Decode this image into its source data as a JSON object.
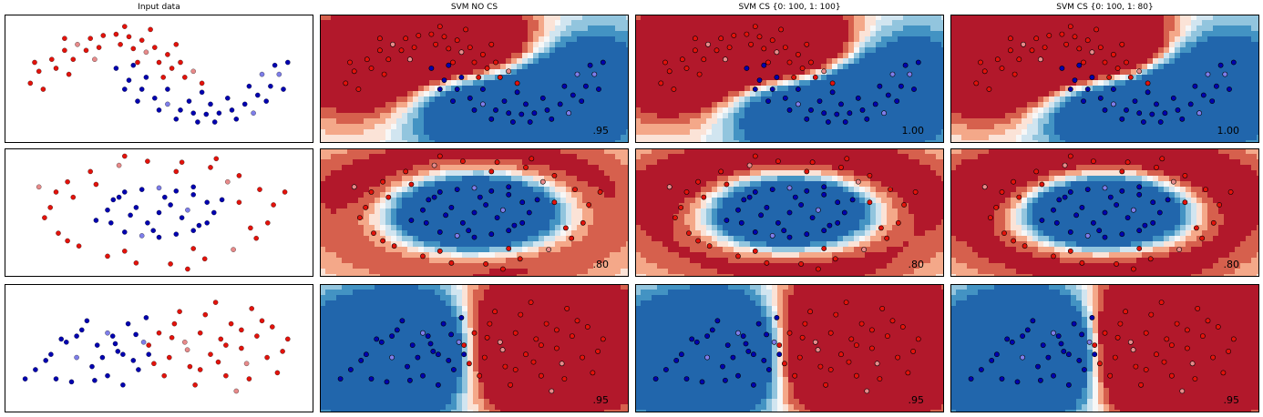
{
  "titles": [
    "Input data",
    "SVM NO CS",
    "SVM CS {0: 100, 1: 100}",
    "SVM CS {0: 100, 1: 80}"
  ],
  "colors": {
    "class0": "#e3120b",
    "class1": "#0000b0",
    "light0": "#e88a8a",
    "light1": "#7e7eea",
    "contour_red": [
      "#fbe3d7",
      "#f4a889",
      "#d6604d",
      "#b2182b"
    ],
    "contour_blue": [
      "#d1e5f0",
      "#92c5de",
      "#4393c3",
      "#2166ac"
    ],
    "neutral": "#f7f7f7"
  },
  "chart_data": [
    {
      "type": "scatter",
      "dataset": "moons",
      "rows_label": "row-1",
      "scores": [
        "",
        ".95",
        "1.00",
        "1.00"
      ],
      "red_points": [
        [
          -1.0,
          0.2
        ],
        [
          -0.9,
          0.4
        ],
        [
          -0.75,
          0.6
        ],
        [
          -0.6,
          0.75
        ],
        [
          -0.45,
          0.85
        ],
        [
          -0.3,
          0.95
        ],
        [
          -0.15,
          1.0
        ],
        [
          0.0,
          1.02
        ],
        [
          0.15,
          0.98
        ],
        [
          0.3,
          0.92
        ],
        [
          0.45,
          0.8
        ],
        [
          0.6,
          0.68
        ],
        [
          0.75,
          0.55
        ],
        [
          0.9,
          0.4
        ],
        [
          1.0,
          0.2
        ],
        [
          -0.85,
          0.1
        ],
        [
          -0.7,
          0.45
        ],
        [
          -0.5,
          0.6
        ],
        [
          -0.35,
          0.75
        ],
        [
          -0.2,
          0.8
        ],
        [
          0.05,
          0.85
        ],
        [
          0.2,
          0.78
        ],
        [
          0.35,
          0.72
        ],
        [
          0.5,
          0.55
        ],
        [
          0.65,
          0.45
        ],
        [
          0.8,
          0.3
        ],
        [
          -0.95,
          0.55
        ],
        [
          -0.6,
          0.95
        ],
        [
          0.1,
          1.15
        ],
        [
          0.4,
          1.1
        ],
        [
          0.7,
          0.85
        ],
        [
          -0.25,
          0.6
        ],
        [
          0.25,
          0.55
        ],
        [
          0.55,
          0.3
        ],
        [
          -0.55,
          0.35
        ]
      ],
      "blue_points": [
        [
          0.0,
          0.45
        ],
        [
          0.15,
          0.25
        ],
        [
          0.3,
          0.1
        ],
        [
          0.45,
          -0.05
        ],
        [
          0.6,
          -0.15
        ],
        [
          0.75,
          -0.25
        ],
        [
          0.9,
          -0.3
        ],
        [
          1.05,
          -0.32
        ],
        [
          1.2,
          -0.3
        ],
        [
          1.35,
          -0.25
        ],
        [
          1.5,
          -0.15
        ],
        [
          1.65,
          0.0
        ],
        [
          1.8,
          0.15
        ],
        [
          1.9,
          0.35
        ],
        [
          2.0,
          0.55
        ],
        [
          0.1,
          0.1
        ],
        [
          0.25,
          -0.1
        ],
        [
          0.5,
          -0.25
        ],
        [
          0.7,
          -0.4
        ],
        [
          0.95,
          -0.45
        ],
        [
          1.15,
          -0.45
        ],
        [
          1.4,
          -0.4
        ],
        [
          1.6,
          -0.3
        ],
        [
          1.75,
          -0.1
        ],
        [
          1.95,
          0.1
        ],
        [
          0.35,
          0.3
        ],
        [
          0.6,
          0.1
        ],
        [
          0.85,
          -0.1
        ],
        [
          1.1,
          -0.15
        ],
        [
          1.3,
          -0.05
        ],
        [
          1.55,
          0.15
        ],
        [
          1.7,
          0.35
        ],
        [
          1.85,
          0.5
        ],
        [
          0.2,
          0.5
        ],
        [
          1.0,
          0.05
        ]
      ],
      "x_range": [
        -1.3,
        2.3
      ],
      "y_range": [
        -0.8,
        1.35
      ]
    },
    {
      "type": "scatter",
      "dataset": "circles",
      "rows_label": "row-2",
      "scores": [
        "",
        ".80",
        ".80",
        ".80"
      ],
      "red_points": [
        [
          -0.95,
          0.1
        ],
        [
          -0.9,
          0.4
        ],
        [
          -0.8,
          0.6
        ],
        [
          -0.6,
          0.8
        ],
        [
          -0.35,
          0.92
        ],
        [
          -0.1,
          1.0
        ],
        [
          0.2,
          0.98
        ],
        [
          0.45,
          0.88
        ],
        [
          0.7,
          0.72
        ],
        [
          0.88,
          0.45
        ],
        [
          1.0,
          0.15
        ],
        [
          0.95,
          -0.2
        ],
        [
          0.85,
          -0.5
        ],
        [
          0.65,
          -0.72
        ],
        [
          0.4,
          -0.9
        ],
        [
          0.1,
          -1.0
        ],
        [
          -0.2,
          -0.98
        ],
        [
          -0.45,
          -0.85
        ],
        [
          -0.7,
          -0.65
        ],
        [
          -0.88,
          -0.4
        ],
        [
          -1.0,
          -0.1
        ],
        [
          -0.75,
          0.3
        ],
        [
          0.6,
          0.6
        ],
        [
          0.8,
          -0.3
        ],
        [
          -0.3,
          -0.75
        ],
        [
          0.3,
          -0.7
        ],
        [
          -0.55,
          0.55
        ],
        [
          0.15,
          0.8
        ],
        [
          -0.8,
          -0.55
        ],
        [
          0.7,
          0.2
        ],
        [
          1.1,
          0.4
        ],
        [
          -1.05,
          0.5
        ],
        [
          0.5,
          1.05
        ],
        [
          -0.3,
          1.1
        ],
        [
          0.25,
          -1.1
        ]
      ],
      "blue_points": [
        [
          -0.45,
          0.05
        ],
        [
          -0.4,
          0.25
        ],
        [
          -0.3,
          0.4
        ],
        [
          -0.15,
          0.45
        ],
        [
          0.0,
          0.48
        ],
        [
          0.15,
          0.42
        ],
        [
          0.3,
          0.35
        ],
        [
          0.42,
          0.2
        ],
        [
          0.48,
          0.0
        ],
        [
          0.42,
          -0.2
        ],
        [
          0.3,
          -0.35
        ],
        [
          0.15,
          -0.42
        ],
        [
          0.0,
          -0.48
        ],
        [
          -0.15,
          -0.45
        ],
        [
          -0.3,
          -0.38
        ],
        [
          -0.42,
          -0.2
        ],
        [
          -0.2,
          0.1
        ],
        [
          0.1,
          0.15
        ],
        [
          0.2,
          -0.1
        ],
        [
          -0.1,
          -0.2
        ],
        [
          0.0,
          0.0
        ],
        [
          -0.25,
          -0.05
        ],
        [
          0.25,
          0.05
        ],
        [
          0.35,
          -0.25
        ],
        [
          -0.35,
          0.3
        ],
        [
          0.05,
          0.3
        ],
        [
          -0.05,
          -0.35
        ],
        [
          0.55,
          0.25
        ],
        [
          -0.55,
          -0.15
        ],
        [
          0.3,
          0.5
        ]
      ],
      "x_range": [
        -1.35,
        1.35
      ],
      "y_range": [
        -1.25,
        1.25
      ]
    },
    {
      "type": "scatter",
      "dataset": "linear",
      "rows_label": "row-3",
      "scores": [
        "",
        ".95",
        ".95",
        ".95"
      ],
      "red_points": [
        [
          1.0,
          0.2
        ],
        [
          1.2,
          0.6
        ],
        [
          1.4,
          -0.2
        ],
        [
          1.5,
          0.9
        ],
        [
          1.7,
          0.3
        ],
        [
          1.8,
          -0.5
        ],
        [
          2.0,
          0.6
        ],
        [
          2.1,
          1.2
        ],
        [
          2.2,
          -0.1
        ],
        [
          2.4,
          0.4
        ],
        [
          2.5,
          -0.8
        ],
        [
          2.6,
          0.9
        ],
        [
          2.8,
          0.1
        ],
        [
          2.9,
          -0.4
        ],
        [
          3.0,
          1.4
        ],
        [
          3.1,
          0.5
        ],
        [
          3.3,
          -0.2
        ],
        [
          3.4,
          0.8
        ],
        [
          3.6,
          0.0
        ],
        [
          1.3,
          -0.8
        ],
        [
          1.9,
          -1.1
        ],
        [
          2.3,
          1.6
        ],
        [
          2.7,
          -1.3
        ],
        [
          3.2,
          1.0
        ],
        [
          1.6,
          1.3
        ],
        [
          2.0,
          -0.6
        ],
        [
          2.5,
          0.2
        ],
        [
          3.5,
          -0.7
        ],
        [
          1.1,
          -0.4
        ],
        [
          2.8,
          0.7
        ],
        [
          3.7,
          0.4
        ],
        [
          1.75,
          0.05
        ],
        [
          2.35,
          -0.35
        ],
        [
          2.95,
          -0.9
        ],
        [
          1.45,
          0.45
        ]
      ],
      "blue_points": [
        [
          -1.2,
          -0.6
        ],
        [
          -1.0,
          -0.3
        ],
        [
          -0.8,
          -0.9
        ],
        [
          -0.6,
          0.3
        ],
        [
          -0.4,
          -0.2
        ],
        [
          -0.3,
          0.7
        ],
        [
          -0.1,
          -0.5
        ],
        [
          0.0,
          0.2
        ],
        [
          0.2,
          -0.8
        ],
        [
          0.3,
          0.5
        ],
        [
          0.5,
          -0.1
        ],
        [
          0.6,
          0.9
        ],
        [
          0.8,
          -0.6
        ],
        [
          0.9,
          0.3
        ],
        [
          -0.5,
          -1.0
        ],
        [
          -0.2,
          1.0
        ],
        [
          0.1,
          -0.2
        ],
        [
          0.4,
          0.0
        ],
        [
          0.7,
          -0.3
        ],
        [
          -0.7,
          0.4
        ],
        [
          1.0,
          -0.1
        ],
        [
          -0.9,
          -0.1
        ],
        [
          0.2,
          0.6
        ],
        [
          0.5,
          -1.1
        ],
        [
          -0.4,
          0.5
        ],
        [
          0.75,
          0.55
        ],
        [
          -1.4,
          -0.9
        ],
        [
          0.95,
          1.1
        ],
        [
          -0.05,
          -0.95
        ],
        [
          0.35,
          0.25
        ]
      ],
      "x_range": [
        -1.8,
        4.2
      ],
      "y_range": [
        -2.0,
        2.2
      ]
    }
  ]
}
